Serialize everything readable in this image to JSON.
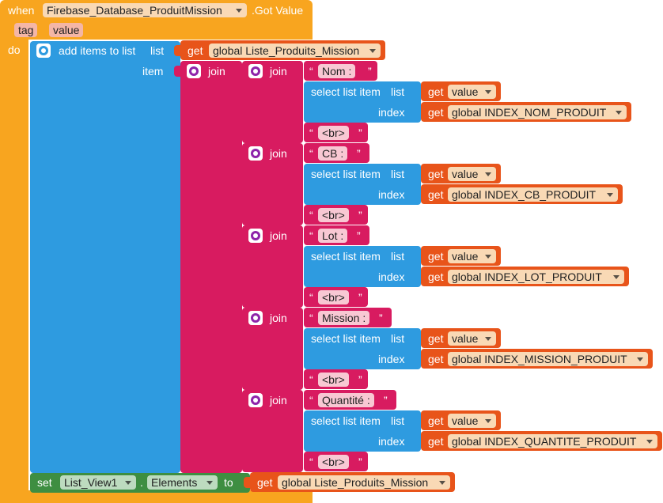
{
  "event": {
    "when": "when",
    "component": "Firebase_Database_ProduitMission",
    "event_name": ".Got Value",
    "params": [
      "tag",
      "value"
    ],
    "do": "do"
  },
  "add_items": {
    "label": "add items to list",
    "list_label": "list",
    "item_label": "item"
  },
  "get": "get",
  "global_list": "global Liste_Produits_Mission",
  "join": "join",
  "select": {
    "label": "select list item",
    "list_label": "list",
    "index_label": "index",
    "value_var": "value"
  },
  "quote_open": "“",
  "quote_close": "”",
  "br": "<br>",
  "fields": [
    {
      "label": "Nom :",
      "index_var": "global INDEX_NOM_PRODUIT"
    },
    {
      "label": "CB :",
      "index_var": "global INDEX_CB_PRODUIT"
    },
    {
      "label": "Lot :",
      "index_var": "global INDEX_LOT_PRODUIT"
    },
    {
      "label": "Mission :",
      "index_var": "global INDEX_MISSION_PRODUIT"
    },
    {
      "label": "Quantité :",
      "index_var": "global INDEX_QUANTITE_PRODUIT"
    }
  ],
  "set_block": {
    "set": "set",
    "component": "List_View1",
    "dot": ".",
    "property": "Elements",
    "to": "to"
  },
  "colors": {
    "event": "#F8A51F",
    "lists": "#2E9BE0",
    "text": "#D81B60",
    "variables": "#E8541A",
    "components": "#3E8E41"
  }
}
